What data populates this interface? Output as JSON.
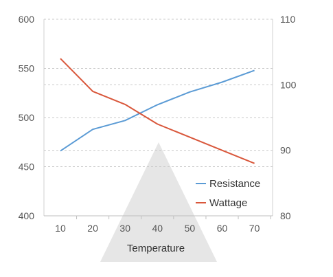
{
  "chart_data": {
    "type": "line",
    "xlabel": "Temperature",
    "categories": [
      10,
      20,
      30,
      40,
      50,
      60,
      70
    ],
    "left_axis": {
      "ticks": [
        400,
        450,
        500,
        550,
        600
      ],
      "ylim": [
        400,
        600
      ]
    },
    "right_axis": {
      "ticks": [
        80,
        90,
        100,
        110
      ],
      "ylim": [
        80,
        110
      ]
    },
    "grid": "horizontal dashed",
    "legend_position": "bottom-right",
    "colors": {
      "Resistance": "#5b9bd5",
      "Wattage": "#d9573b"
    },
    "series": [
      {
        "name": "Resistance",
        "axis": "left",
        "values": [
          466,
          488,
          497,
          513,
          526,
          536,
          548
        ]
      },
      {
        "name": "Wattage",
        "axis": "right",
        "values": [
          104,
          99,
          97,
          94,
          92,
          90,
          88
        ]
      }
    ]
  }
}
